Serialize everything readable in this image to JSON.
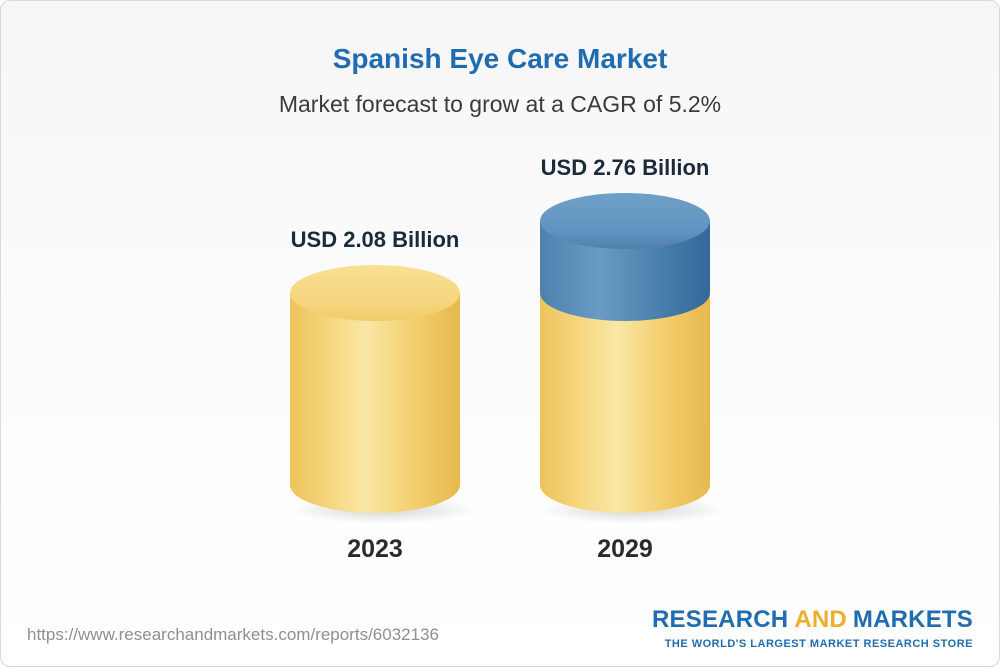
{
  "header": {
    "title": "Spanish Eye Care Market",
    "subtitle": "Market forecast to grow at a CAGR of 5.2%"
  },
  "chart_data": {
    "type": "bar",
    "bar_style": "3d-cylinder",
    "categories": [
      "2023",
      "2029"
    ],
    "values": [
      2.08,
      2.76
    ],
    "value_labels": [
      "USD 2.08 Billion",
      "USD 2.76 Billion"
    ],
    "unit": "USD Billion",
    "title": "Spanish Eye Care Market",
    "subtitle": "Market forecast to grow at a CAGR of 5.2%",
    "cagr_percent": 5.2,
    "grid": false,
    "legend": "none",
    "colors": {
      "base_segment": "#f3cf6b",
      "growth_segment": "#4a80ac",
      "title_blue": "#1f6cb0",
      "logo_gold": "#f0ad2d"
    }
  },
  "footer": {
    "url": "https://www.researchandmarkets.com/reports/6032136",
    "logo": {
      "word1": "RESEARCH",
      "word2": "AND",
      "word3": "MARKETS",
      "tagline": "THE WORLD'S LARGEST MARKET RESEARCH STORE"
    }
  }
}
